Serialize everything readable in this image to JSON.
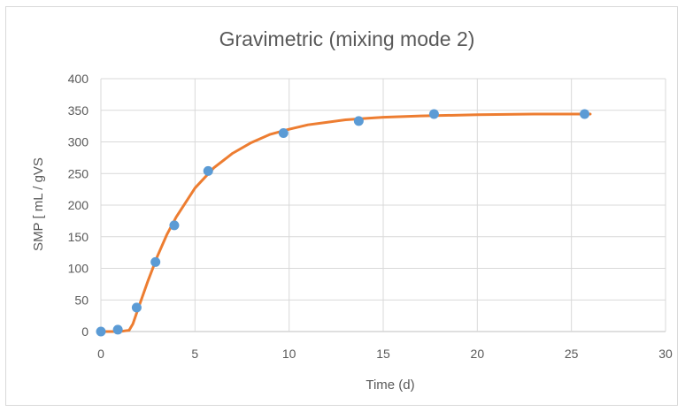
{
  "chart_data": {
    "type": "scatter",
    "title": "Gravimetric (mixing mode 2)",
    "xlabel": "Time (d)",
    "ylabel": "SMP [ mL / gVS",
    "xlim": [
      0,
      30
    ],
    "ylim": [
      0,
      400
    ],
    "x_ticks": [
      0,
      5,
      10,
      15,
      20,
      25,
      30
    ],
    "y_ticks": [
      0,
      50,
      100,
      150,
      200,
      250,
      300,
      350,
      400
    ],
    "grid": true,
    "legend": "none",
    "colors": {
      "points": "#5b9bd5",
      "curve": "#ed7d31"
    },
    "series": [
      {
        "kind": "points",
        "x": [
          0,
          0.9,
          1.9,
          2.9,
          3.9,
          5.7,
          9.7,
          13.7,
          17.7,
          25.7
        ],
        "y": [
          0,
          3,
          38,
          110,
          168,
          254,
          314,
          333,
          344,
          344
        ]
      },
      {
        "kind": "fitted-curve",
        "x": [
          0,
          1.0,
          1.5,
          1.7,
          2.0,
          2.5,
          3.0,
          3.5,
          4.0,
          5.0,
          6.0,
          7.0,
          8.0,
          9.0,
          10.0,
          11.0,
          12.0,
          13.0,
          14.0,
          15.0,
          17.0,
          20.0,
          23.0,
          26.0
        ],
        "y": [
          0,
          0,
          2,
          12,
          38,
          80,
          119,
          153,
          181,
          227,
          259,
          282,
          299,
          312,
          320,
          327,
          331,
          335,
          337,
          339,
          341,
          343,
          344,
          344
        ]
      }
    ]
  }
}
